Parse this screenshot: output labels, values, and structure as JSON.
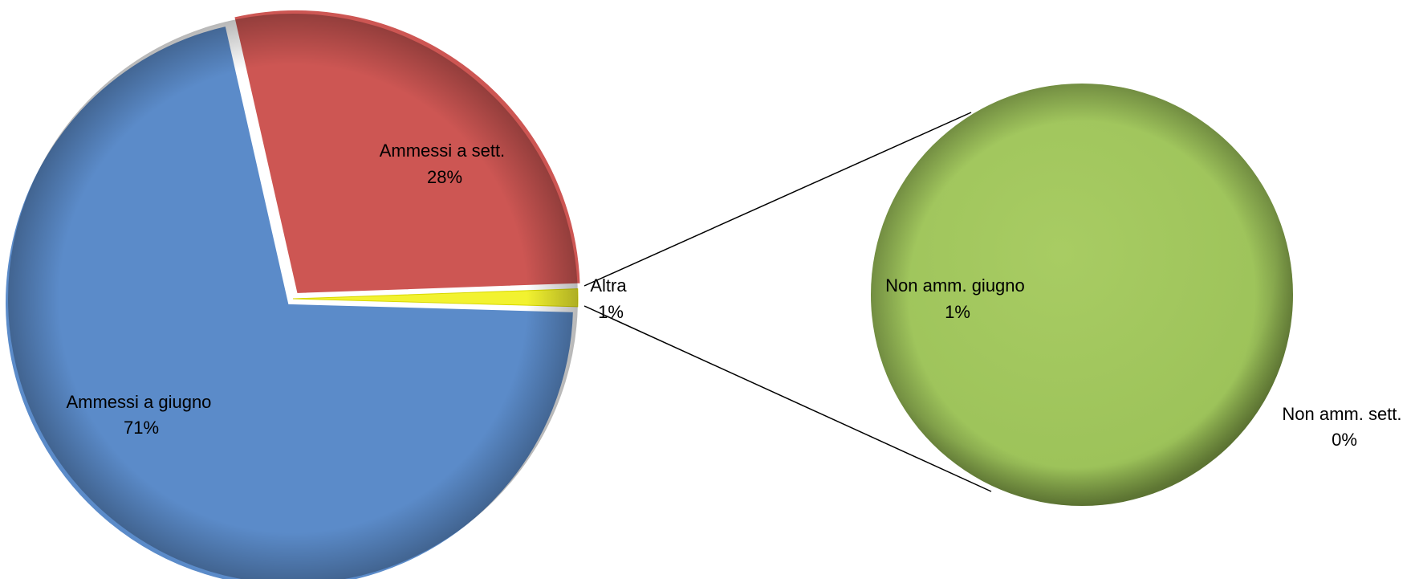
{
  "chart_data": {
    "type": "pie",
    "subtype": "pie-of-pie",
    "primary": {
      "slices": [
        {
          "label": "Ammessi a sett.",
          "value": 28,
          "display": "28%",
          "color": "#CD5653"
        },
        {
          "label": "Altra",
          "value": 1,
          "display": "1%",
          "color": "#F2F230"
        },
        {
          "label": "Ammessi a giugno",
          "value": 71,
          "display": "71%",
          "color": "#5B8BC9"
        }
      ]
    },
    "secondary": {
      "slices": [
        {
          "label": "Non amm. giugno",
          "value": 1,
          "display": "1%",
          "color": "#9DC35A"
        },
        {
          "label": "Non amm. sett.",
          "value": 0,
          "display": "0%",
          "color": "#9DC35A"
        }
      ]
    }
  }
}
